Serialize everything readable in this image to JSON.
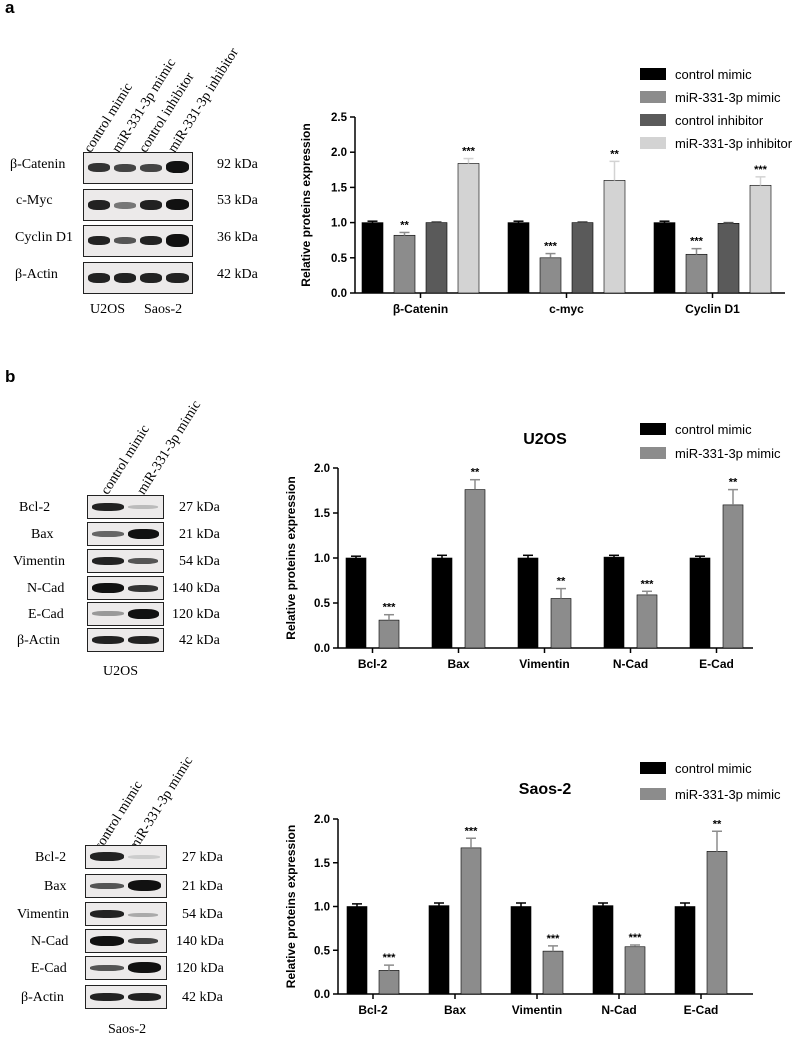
{
  "panel_a": {
    "letter": "a",
    "blot": {
      "lanes": [
        "control mimic",
        "miR-331-3p mimic",
        "control inhibitor",
        "miR-331-3p inhibitor"
      ],
      "rows": [
        {
          "protein": "β-Catenin",
          "kda": "92 kDa"
        },
        {
          "protein": "c-Myc",
          "kda": "53 kDa"
        },
        {
          "protein": "Cyclin D1",
          "kda": "36 kDa"
        },
        {
          "protein": "β-Actin",
          "kda": "42 kDa"
        }
      ],
      "cell_lines": [
        "U2OS",
        "Saos-2"
      ]
    }
  },
  "panel_b": {
    "letter": "b",
    "u2os_blot": {
      "lanes": [
        "control mimic",
        "miR-331-3p mimic"
      ],
      "rows": [
        {
          "protein": "Bcl-2",
          "kda": "27 kDa"
        },
        {
          "protein": "Bax",
          "kda": "21 kDa"
        },
        {
          "protein": "Vimentin",
          "kda": "54 kDa"
        },
        {
          "protein": "N-Cad",
          "kda": "140 kDa"
        },
        {
          "protein": "E-Cad",
          "kda": "120 kDa"
        },
        {
          "protein": "β-Actin",
          "kda": "42 kDa"
        }
      ],
      "caption": "U2OS"
    },
    "saos_blot": {
      "lanes": [
        "control mimic",
        "miR-331-3p mimic"
      ],
      "rows": [
        {
          "protein": "Bcl-2",
          "kda": "27 kDa"
        },
        {
          "protein": "Bax",
          "kda": "21 kDa"
        },
        {
          "protein": "Vimentin",
          "kda": "54 kDa"
        },
        {
          "protein": "N-Cad",
          "kda": "140 kDa"
        },
        {
          "protein": "E-Cad",
          "kda": "120 kDa"
        },
        {
          "protein": "β-Actin",
          "kda": "42 kDa"
        }
      ],
      "caption": "Saos-2"
    }
  },
  "chart_data": [
    {
      "type": "bar",
      "title": "",
      "ylabel": "Relative proteins expression",
      "xlabel": "",
      "ylim": [
        0,
        2.5
      ],
      "yticks": [
        "0.0",
        "0.5",
        "1.0",
        "1.5",
        "2.0",
        "2.5"
      ],
      "categories": [
        "β-Catenin",
        "c-myc",
        "Cyclin D1"
      ],
      "series": [
        {
          "name": "control mimic",
          "color": "#000000",
          "values": [
            1.0,
            1.0,
            1.0
          ],
          "errors": [
            0.02,
            0.02,
            0.02
          ],
          "sig": [
            "",
            "",
            ""
          ]
        },
        {
          "name": "miR-331-3p mimic",
          "color": "#8c8c8c",
          "values": [
            0.82,
            0.5,
            0.55
          ],
          "errors": [
            0.04,
            0.06,
            0.08
          ],
          "sig": [
            "**",
            "***",
            "***"
          ]
        },
        {
          "name": "control inhibitor",
          "color": "#5a5a5a",
          "values": [
            1.0,
            1.0,
            0.99
          ],
          "errors": [
            0.01,
            0.01,
            0.01
          ],
          "sig": [
            "",
            "",
            ""
          ]
        },
        {
          "name": "miR-331-3p inhibitor",
          "color": "#d3d3d3",
          "values": [
            1.84,
            1.6,
            1.53
          ],
          "errors": [
            0.07,
            0.27,
            0.12
          ],
          "sig": [
            "***",
            "**",
            "***"
          ]
        }
      ]
    },
    {
      "type": "bar",
      "title": "U2OS",
      "ylabel": "Relative proteins expression",
      "xlabel": "",
      "ylim": [
        0,
        2.0
      ],
      "yticks": [
        "0.0",
        "0.5",
        "1.0",
        "1.5",
        "2.0"
      ],
      "categories": [
        "Bcl-2",
        "Bax",
        "Vimentin",
        "N-Cad",
        "E-Cad"
      ],
      "series": [
        {
          "name": "control mimic",
          "color": "#000000",
          "values": [
            1.0,
            1.0,
            1.0,
            1.01,
            1.0
          ],
          "errors": [
            0.02,
            0.03,
            0.03,
            0.02,
            0.02
          ],
          "sig": [
            "",
            "",
            "",
            "",
            ""
          ]
        },
        {
          "name": "miR-331-3p mimic",
          "color": "#8c8c8c",
          "values": [
            0.31,
            1.76,
            0.55,
            0.59,
            1.59
          ],
          "errors": [
            0.06,
            0.11,
            0.11,
            0.04,
            0.17
          ],
          "sig": [
            "***",
            "**",
            "**",
            "***",
            "**"
          ]
        }
      ]
    },
    {
      "type": "bar",
      "title": "Saos-2",
      "ylabel": "Relative proteins expression",
      "xlabel": "",
      "ylim": [
        0,
        2.0
      ],
      "yticks": [
        "0.0",
        "0.5",
        "1.0",
        "1.5",
        "2.0"
      ],
      "categories": [
        "Bcl-2",
        "Bax",
        "Vimentin",
        "N-Cad",
        "E-Cad"
      ],
      "series": [
        {
          "name": "control mimic",
          "color": "#000000",
          "values": [
            1.0,
            1.01,
            1.0,
            1.01,
            1.0
          ],
          "errors": [
            0.03,
            0.03,
            0.04,
            0.03,
            0.04
          ],
          "sig": [
            "",
            "",
            "",
            "",
            ""
          ]
        },
        {
          "name": "miR-331-3p mimic",
          "color": "#8c8c8c",
          "values": [
            0.27,
            1.67,
            0.49,
            0.54,
            1.63
          ],
          "errors": [
            0.06,
            0.11,
            0.06,
            0.02,
            0.23
          ],
          "sig": [
            "***",
            "***",
            "***",
            "***",
            "**"
          ]
        }
      ]
    }
  ]
}
